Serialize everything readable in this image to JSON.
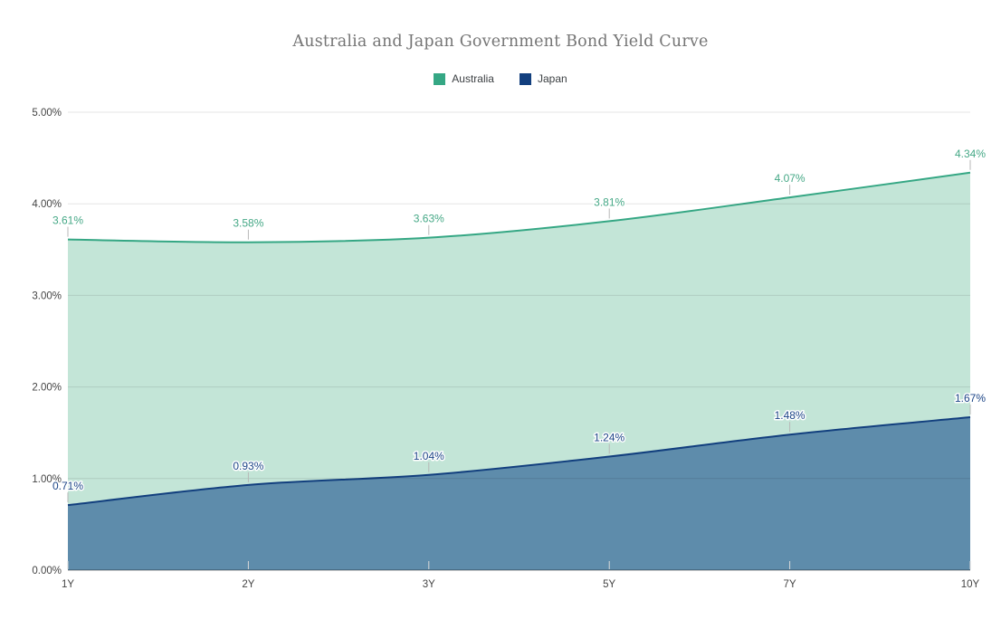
{
  "title": "Australia and Japan Government Bond Yield Curve",
  "legend": {
    "items": [
      {
        "label": "Australia",
        "color": "#35a784"
      },
      {
        "label": "Japan",
        "color": "#123f7e"
      }
    ]
  },
  "chart_data": {
    "type": "area",
    "title": "Australia and Japan Government Bond Yield Curve",
    "categories": [
      "1Y",
      "2Y",
      "3Y",
      "5Y",
      "7Y",
      "10Y"
    ],
    "series": [
      {
        "name": "Australia",
        "values": [
          3.61,
          3.58,
          3.63,
          3.81,
          4.07,
          4.34
        ],
        "data_labels": [
          "3.61%",
          "3.58%",
          "3.63%",
          "3.81%",
          "4.07%",
          "4.34%"
        ],
        "line_color": "#35a784",
        "fill_color": "#c3e5d7",
        "label_color": "#45a886",
        "label_halo": "#ffffff"
      },
      {
        "name": "Japan",
        "values": [
          0.71,
          0.93,
          1.04,
          1.24,
          1.48,
          1.67
        ],
        "data_labels": [
          "0.71%",
          "0.93%",
          "1.04%",
          "1.24%",
          "1.48%",
          "1.67%"
        ],
        "line_color": "#123f7e",
        "fill_color": "#5e8cab",
        "label_color": "#1c4587",
        "label_halo": "#ffffff"
      }
    ],
    "xlabel": "",
    "ylabel": "",
    "ylim": [
      0,
      5
    ],
    "y_ticks": [
      "0.00%",
      "1.00%",
      "2.00%",
      "3.00%",
      "4.00%",
      "5.00%"
    ],
    "grid": true,
    "legend_position": "top",
    "colors": {
      "gridline": "rgba(0,0,0,0.10)",
      "baseline": "rgba(0,0,0,0.45)",
      "tick": "#d9d9d9",
      "annotation_stem": "#b7b7b7"
    }
  }
}
